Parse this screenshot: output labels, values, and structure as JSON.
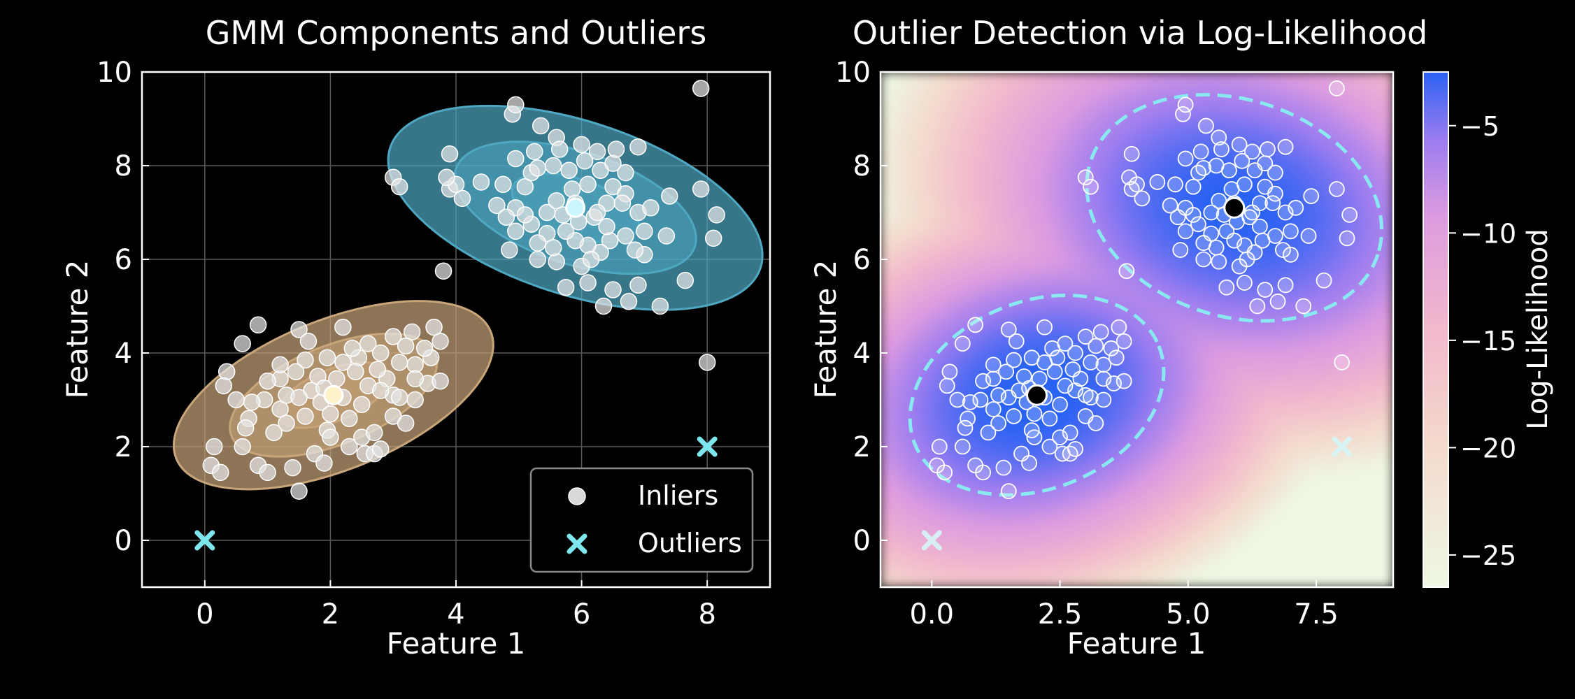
{
  "chart_data": [
    {
      "type": "scatter",
      "title": "GMM Components and Outliers",
      "xlabel": "Feature 1",
      "ylabel": "Feature 2",
      "xlim": [
        -1,
        9
      ],
      "ylim": [
        -1,
        10
      ],
      "xticks": [
        "0",
        "2",
        "4",
        "6",
        "8"
      ],
      "yticks": [
        "0",
        "2",
        "4",
        "6",
        "8",
        "10"
      ],
      "grid": true,
      "legend_position": "lower-right",
      "legend": [
        {
          "label": "Inliers",
          "marker": "circle",
          "color": "#d9d9d9"
        },
        {
          "label": "Outliers",
          "marker": "x",
          "color": "#7ee7ee"
        }
      ],
      "components": [
        {
          "mean": [
            2.05,
            3.1
          ],
          "color": "#c9a57a",
          "center_color": "#fff2c8",
          "ellipse_rx": [
            2.7,
            1.75,
            0.95
          ],
          "ellipse_ry": [
            1.6,
            1.05,
            0.55
          ],
          "angle_deg": 22
        },
        {
          "mean": [
            5.9,
            7.1
          ],
          "color": "#4fa8c2",
          "center_color": "#c9f6ff",
          "ellipse_rx": [
            3.1,
            2.0,
            1.05
          ],
          "ellipse_ry": [
            1.85,
            1.2,
            0.62
          ],
          "angle_deg": -18
        }
      ],
      "outliers": [
        [
          0,
          0
        ],
        [
          8,
          2
        ]
      ]
    },
    {
      "type": "heatmap",
      "title": "Outlier Detection via Log-Likelihood",
      "xlabel": "Feature 1",
      "ylabel": "Feature 2",
      "xlim": [
        -1,
        9
      ],
      "ylim": [
        -1,
        10
      ],
      "xticks": [
        "0.0",
        "2.5",
        "5.0",
        "7.5"
      ],
      "yticks": [
        "0",
        "2",
        "4",
        "6",
        "8",
        "10"
      ],
      "colorbar_label": "Log-Likelihood",
      "colorbar_range": [
        -26.5,
        -2.5
      ],
      "colorbar_ticks": [
        "−5",
        "−10",
        "−15",
        "−20",
        "−25"
      ],
      "colormap": [
        "#eef8e4",
        "#f4c8c8",
        "#e8a3dc",
        "#a27ef0",
        "#2b62f3"
      ],
      "outliers": [
        [
          0,
          0
        ],
        [
          8,
          2
        ]
      ]
    }
  ],
  "inliers": [
    [
      1.5,
      4.5
    ],
    [
      2.2,
      4.55
    ],
    [
      0.85,
      4.6
    ],
    [
      0.6,
      4.2
    ],
    [
      0.35,
      3.6
    ],
    [
      0.3,
      3.3
    ],
    [
      0.5,
      3.0
    ],
    [
      0.7,
      2.6
    ],
    [
      0.65,
      2.4
    ],
    [
      0.6,
      2.0
    ],
    [
      0.15,
      2.0
    ],
    [
      0.1,
      1.6
    ],
    [
      0.25,
      1.45
    ],
    [
      0.85,
      1.6
    ],
    [
      1.0,
      1.45
    ],
    [
      1.4,
      1.55
    ],
    [
      1.5,
      1.05
    ],
    [
      1.75,
      1.85
    ],
    [
      1.9,
      1.65
    ],
    [
      1.95,
      2.35
    ],
    [
      2.3,
      2.0
    ],
    [
      2.55,
      1.85
    ],
    [
      2.7,
      1.85
    ],
    [
      2.8,
      1.95
    ],
    [
      2.5,
      2.2
    ],
    [
      2.7,
      2.3
    ],
    [
      3.0,
      2.65
    ],
    [
      3.2,
      2.5
    ],
    [
      3.35,
      3.0
    ],
    [
      3.0,
      3.1
    ],
    [
      3.55,
      3.35
    ],
    [
      3.75,
      3.4
    ],
    [
      3.6,
      3.9
    ],
    [
      3.75,
      4.25
    ],
    [
      3.65,
      4.55
    ],
    [
      3.3,
      4.45
    ],
    [
      3.0,
      4.35
    ],
    [
      2.6,
      4.2
    ],
    [
      2.8,
      4.0
    ],
    [
      2.45,
      3.9
    ],
    [
      2.2,
      3.8
    ],
    [
      1.95,
      3.9
    ],
    [
      1.6,
      3.85
    ],
    [
      1.45,
      3.6
    ],
    [
      1.2,
      3.45
    ],
    [
      1.0,
      3.4
    ],
    [
      0.95,
      3.0
    ],
    [
      1.2,
      2.8
    ],
    [
      1.3,
      2.5
    ],
    [
      1.6,
      2.65
    ],
    [
      1.7,
      3.2
    ],
    [
      1.85,
      2.95
    ],
    [
      2.0,
      2.7
    ],
    [
      2.3,
      2.6
    ],
    [
      2.5,
      2.9
    ],
    [
      2.6,
      3.3
    ],
    [
      2.9,
      3.45
    ],
    [
      3.1,
      3.8
    ],
    [
      3.35,
      3.75
    ],
    [
      3.5,
      4.1
    ],
    [
      3.2,
      4.15
    ],
    [
      2.4,
      3.6
    ],
    [
      2.1,
      3.45
    ],
    [
      1.8,
      3.5
    ],
    [
      1.3,
      3.1
    ],
    [
      1.5,
      3.05
    ],
    [
      2.2,
      3.05
    ],
    [
      2.8,
      3.2
    ],
    [
      3.1,
      3.05
    ],
    [
      0.75,
      2.95
    ],
    [
      1.1,
      2.3
    ],
    [
      2.0,
      2.2
    ],
    [
      2.35,
      4.1
    ],
    [
      1.65,
      4.25
    ],
    [
      2.75,
      3.65
    ],
    [
      3.35,
      3.45
    ],
    [
      1.9,
      3.25
    ],
    [
      1.2,
      3.75
    ],
    [
      4.4,
      7.65
    ],
    [
      4.75,
      7.6
    ],
    [
      4.65,
      7.15
    ],
    [
      4.95,
      7.1
    ],
    [
      5.1,
      7.55
    ],
    [
      5.2,
      7.85
    ],
    [
      5.3,
      7.95
    ],
    [
      5.55,
      8.0
    ],
    [
      5.8,
      7.9
    ],
    [
      6.05,
      8.1
    ],
    [
      6.3,
      7.9
    ],
    [
      6.5,
      8.05
    ],
    [
      6.7,
      7.85
    ],
    [
      6.5,
      7.55
    ],
    [
      6.7,
      7.4
    ],
    [
      6.9,
      7.0
    ],
    [
      7.1,
      7.1
    ],
    [
      7.0,
      6.6
    ],
    [
      6.7,
      6.5
    ],
    [
      6.45,
      6.4
    ],
    [
      6.3,
      6.15
    ],
    [
      6.1,
      6.3
    ],
    [
      5.9,
      6.4
    ],
    [
      5.75,
      6.6
    ],
    [
      5.45,
      6.55
    ],
    [
      5.3,
      6.35
    ],
    [
      5.2,
      6.75
    ],
    [
      5.45,
      7.0
    ],
    [
      5.6,
      7.25
    ],
    [
      5.85,
      7.5
    ],
    [
      6.1,
      7.6
    ],
    [
      6.4,
      7.2
    ],
    [
      6.65,
      7.2
    ],
    [
      6.2,
      6.9
    ],
    [
      5.95,
      6.8
    ],
    [
      5.7,
      6.95
    ],
    [
      5.1,
      6.95
    ],
    [
      4.95,
      6.6
    ],
    [
      5.3,
      6.0
    ],
    [
      5.6,
      5.95
    ],
    [
      6.1,
      5.5
    ],
    [
      6.5,
      5.35
    ],
    [
      6.9,
      5.45
    ],
    [
      6.75,
      5.1
    ],
    [
      6.35,
      5.0
    ],
    [
      7.0,
      6.1
    ],
    [
      7.35,
      6.5
    ],
    [
      7.4,
      7.35
    ],
    [
      5.35,
      8.85
    ],
    [
      4.9,
      9.1
    ],
    [
      4.95,
      9.3
    ],
    [
      5.6,
      8.6
    ],
    [
      5.25,
      8.3
    ],
    [
      6.25,
      8.3
    ],
    [
      6.55,
      8.35
    ],
    [
      6.9,
      8.4
    ],
    [
      4.95,
      8.15
    ],
    [
      5.65,
      8.35
    ],
    [
      6.0,
      8.45
    ],
    [
      4.1,
      7.3
    ],
    [
      3.9,
      7.5
    ],
    [
      3.9,
      8.25
    ],
    [
      4.0,
      7.6
    ],
    [
      3.85,
      7.75
    ],
    [
      6.0,
      5.85
    ],
    [
      5.75,
      5.4
    ],
    [
      6.15,
      6.0
    ],
    [
      5.55,
      6.25
    ],
    [
      6.85,
      6.2
    ],
    [
      7.25,
      5.0
    ],
    [
      7.65,
      5.55
    ],
    [
      8.1,
      6.45
    ],
    [
      8.15,
      6.95
    ],
    [
      7.9,
      7.5
    ],
    [
      4.85,
      6.2
    ],
    [
      6.25,
      7.0
    ],
    [
      5.9,
      7.2
    ],
    [
      6.4,
      6.7
    ],
    [
      4.8,
      6.9
    ]
  ],
  "extra_points": [
    [
      7.9,
      9.65
    ],
    [
      8.0,
      3.8
    ],
    [
      3.0,
      7.75
    ],
    [
      3.1,
      7.55
    ],
    [
      3.8,
      5.75
    ]
  ]
}
